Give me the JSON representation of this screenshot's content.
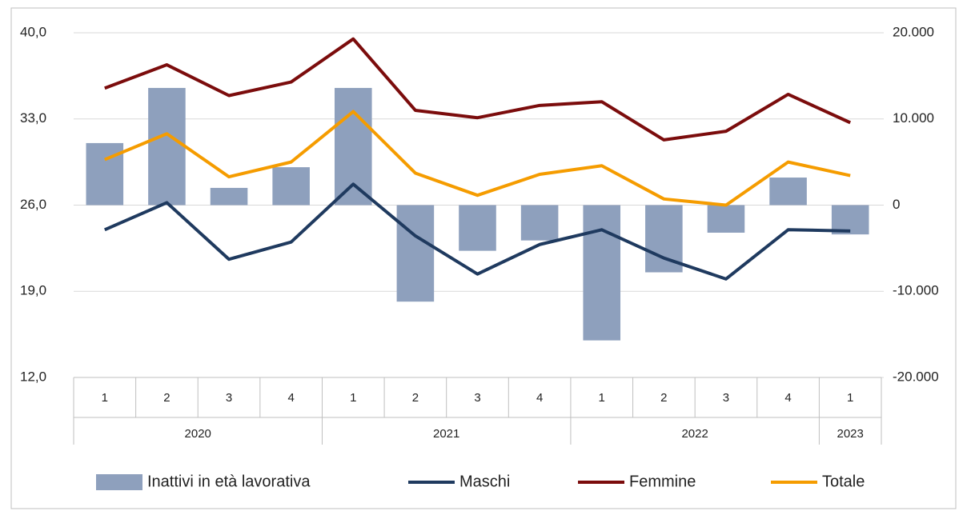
{
  "chart_data": {
    "type": "bar_line",
    "categories": [
      "1",
      "2",
      "3",
      "4",
      "1",
      "2",
      "3",
      "4",
      "1",
      "2",
      "3",
      "4",
      "1"
    ],
    "category_years": [
      "2020",
      "2020",
      "2020",
      "2020",
      "2021",
      "2021",
      "2021",
      "2021",
      "2022",
      "2022",
      "2022",
      "2022",
      "2023"
    ],
    "series": [
      {
        "name": "Inattivi in età lavorativa",
        "type": "bar",
        "axis": "y2",
        "color": "#8ea0bd",
        "values": [
          7200,
          13600,
          2000,
          4400,
          13600,
          -11200,
          -5300,
          -4100,
          -15700,
          -7800,
          -3200,
          3200,
          -3400
        ]
      },
      {
        "name": "Maschi",
        "type": "line",
        "color": "#1f3a5f",
        "values": [
          24.0,
          26.2,
          21.6,
          23.0,
          27.7,
          23.5,
          20.4,
          22.8,
          24.0,
          21.7,
          20.0,
          24.0,
          23.9
        ]
      },
      {
        "name": "Femmine",
        "type": "line",
        "color": "#7b0c0c",
        "values": [
          35.5,
          37.4,
          34.9,
          36.0,
          39.5,
          33.7,
          33.1,
          34.1,
          34.4,
          31.3,
          32.0,
          35.0,
          32.7
        ]
      },
      {
        "name": "Totale",
        "type": "line",
        "color": "#f59c00",
        "values": [
          29.7,
          31.8,
          28.3,
          29.5,
          33.6,
          28.6,
          26.8,
          28.5,
          29.2,
          26.5,
          26.0,
          29.5,
          28.4
        ]
      }
    ],
    "ylim": [
      12,
      40
    ],
    "yticks": [
      {
        "value": 12,
        "label": "12,0"
      },
      {
        "value": 19,
        "label": "19,0"
      },
      {
        "value": 26,
        "label": "26,0"
      },
      {
        "value": 33,
        "label": "33,0"
      },
      {
        "value": 40,
        "label": "40,0"
      }
    ],
    "y2lim": [
      -20000,
      20000
    ],
    "y2ticks": [
      {
        "value": -20000,
        "label": "-20.000"
      },
      {
        "value": -10000,
        "label": "-10.000"
      },
      0,
      {
        "value": 10000,
        "label": "10.000"
      },
      {
        "value": 20000,
        "label": "20.000"
      }
    ],
    "grid": true,
    "legend": "bottom"
  }
}
